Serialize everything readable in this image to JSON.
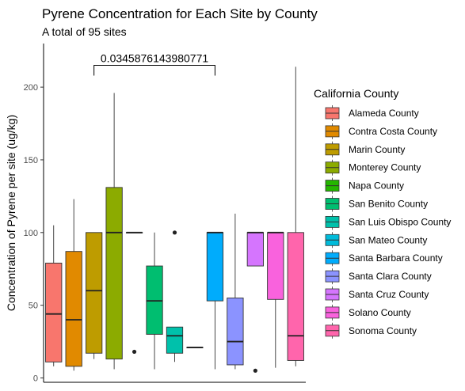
{
  "chart_data": {
    "type": "boxplot",
    "title": "Pyrene Concentration for Each Site by County",
    "subtitle": "A total of 95 sites",
    "xlabel": "",
    "ylabel": "Concentration of Pyrene per site (ug/kg)",
    "ylim": [
      -3,
      230
    ],
    "yticks": [
      0,
      50,
      100,
      150,
      200
    ],
    "legend": {
      "title": "California County",
      "placement": "right"
    },
    "annotation": {
      "text": "0.0345876143980771",
      "from_series": "Marin County",
      "to_series": "Santa Barbara County",
      "y": 215
    },
    "series": [
      {
        "name": "Alameda County",
        "color": "#F8766D",
        "min": 8,
        "q1": 11,
        "median": 44,
        "q3": 79,
        "max": 105,
        "outliers": []
      },
      {
        "name": "Contra Costa County",
        "color": "#E18A00",
        "min": 5,
        "q1": 8,
        "median": 40,
        "q3": 87,
        "max": 123,
        "outliers": []
      },
      {
        "name": "Marin County",
        "color": "#BE9C00",
        "min": 13,
        "q1": 17,
        "median": 60,
        "q3": 100,
        "max": 100,
        "outliers": []
      },
      {
        "name": "Monterey County",
        "color": "#8CAB00",
        "min": 6,
        "q1": 13,
        "median": 100,
        "q3": 131,
        "max": 196,
        "outliers": []
      },
      {
        "name": "Napa County",
        "color": "#24B700",
        "min": 100,
        "q1": 100,
        "median": 100,
        "q3": 100,
        "max": 100,
        "outliers": [
          18
        ]
      },
      {
        "name": "San Benito County",
        "color": "#00BE70",
        "min": 6,
        "q1": 30,
        "median": 53,
        "q3": 77,
        "max": 100,
        "outliers": []
      },
      {
        "name": "San Luis Obispo County",
        "color": "#00C1AB",
        "min": 11,
        "q1": 17,
        "median": 29,
        "q3": 35,
        "max": 35,
        "outliers": [
          100
        ]
      },
      {
        "name": "San Mateo County",
        "color": "#00BBDA",
        "min": 21,
        "q1": 21,
        "median": 21,
        "q3": 21,
        "max": 21,
        "outliers": []
      },
      {
        "name": "Santa Barbara County",
        "color": "#00ACFC",
        "min": 6,
        "q1": 53,
        "median": 100,
        "q3": 100,
        "max": 100,
        "outliers": []
      },
      {
        "name": "Santa Clara County",
        "color": "#8B93FF",
        "min": 6,
        "q1": 9,
        "median": 25,
        "q3": 55,
        "max": 113,
        "outliers": []
      },
      {
        "name": "Santa Cruz County",
        "color": "#D575FE",
        "min": 77,
        "q1": 77,
        "median": 100,
        "q3": 100,
        "max": 100,
        "outliers": [
          5
        ]
      },
      {
        "name": "Solano County",
        "color": "#F962DD",
        "min": 7,
        "q1": 54,
        "median": 100,
        "q3": 100,
        "max": 100,
        "outliers": []
      },
      {
        "name": "Sonoma County",
        "color": "#FF65AC",
        "min": 8,
        "q1": 12,
        "median": 29,
        "q3": 100,
        "max": 214,
        "outliers": []
      }
    ]
  }
}
